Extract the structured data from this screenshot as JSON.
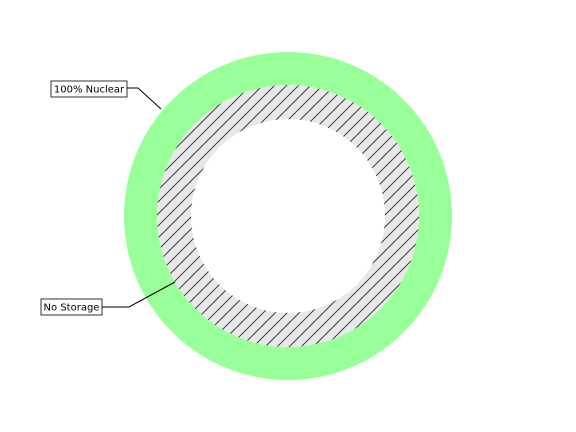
{
  "chart_data": {
    "type": "pie",
    "variant": "nested-donut",
    "title": "",
    "rings": [
      {
        "name": "outer",
        "slices": [
          {
            "label": "100% Nuclear",
            "value": 100,
            "color": "#99ff99",
            "hatch": false
          }
        ]
      },
      {
        "name": "inner",
        "slices": [
          {
            "label": "No Storage",
            "value": 100,
            "color": "#e8e8e8",
            "hatch": true
          }
        ]
      }
    ],
    "annotations": [
      {
        "text": "100% Nuclear",
        "ring": "outer"
      },
      {
        "text": "No Storage",
        "ring": "inner"
      }
    ]
  }
}
